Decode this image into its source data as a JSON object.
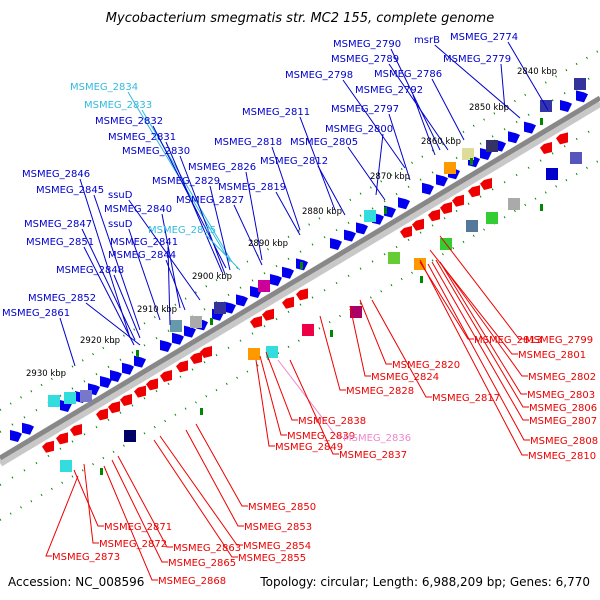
{
  "title": "Mycobacterium smegmatis str. MC2 155, complete genome",
  "accession": "Accession: NC_008596",
  "summary": "Topology: circular; Length: 6,988,209 bp; Genes: 6,770",
  "colors": {
    "forward": "#0000ee",
    "reverse": "#ee0000",
    "highlight_forward": "#33ccee",
    "highlight_reverse": "#ee88cc",
    "backbone": "#888888",
    "tick": "#008800"
  },
  "kbp_ticks": [
    "2840 kbp",
    "2850 kbp",
    "2860 kbp",
    "2870 kbp",
    "2880 kbp",
    "2890 kbp",
    "2900 kbp",
    "2910 kbp",
    "2920 kbp",
    "2930 kbp"
  ],
  "forward_labels": [
    {
      "text": "MSMEG_2774",
      "color": "#0000cc"
    },
    {
      "text": "msrB",
      "color": "#0000cc"
    },
    {
      "text": "MSMEG_2790",
      "color": "#0000cc"
    },
    {
      "text": "MSMEG_2789",
      "color": "#0000cc"
    },
    {
      "text": "MSMEG_2779",
      "color": "#0000cc"
    },
    {
      "text": "MSMEG_2798",
      "color": "#0000cc"
    },
    {
      "text": "MSMEG_2786",
      "color": "#0000cc"
    },
    {
      "text": "MSMEG_2792",
      "color": "#0000cc"
    },
    {
      "text": "MSMEG_2834",
      "color": "#33bbdd"
    },
    {
      "text": "MSMEG_2833",
      "color": "#33bbdd"
    },
    {
      "text": "MSMEG_2797",
      "color": "#0000cc"
    },
    {
      "text": "MSMEG_2811",
      "color": "#0000cc"
    },
    {
      "text": "MSMEG_2832",
      "color": "#0000cc"
    },
    {
      "text": "MSMEG_2800",
      "color": "#0000cc"
    },
    {
      "text": "MSMEG_2831",
      "color": "#0000cc"
    },
    {
      "text": "MSMEG_2818",
      "color": "#0000cc"
    },
    {
      "text": "MSMEG_2805",
      "color": "#0000cc"
    },
    {
      "text": "MSMEG_2830",
      "color": "#0000cc"
    },
    {
      "text": "MSMEG_2812",
      "color": "#0000cc"
    },
    {
      "text": "MSMEG_2826",
      "color": "#0000cc"
    },
    {
      "text": "MSMEG_2846",
      "color": "#0000cc"
    },
    {
      "text": "MSMEG_2829",
      "color": "#0000cc"
    },
    {
      "text": "MSMEG_2819",
      "color": "#0000cc"
    },
    {
      "text": "MSMEG_2845",
      "color": "#0000cc"
    },
    {
      "text": "ssuD",
      "color": "#0000cc"
    },
    {
      "text": "MSMEG_2827",
      "color": "#0000cc"
    },
    {
      "text": "MSMEG_2840",
      "color": "#0000cc"
    },
    {
      "text": "MSMEG_2847",
      "color": "#0000cc"
    },
    {
      "text": "ssuD",
      "color": "#0000cc"
    },
    {
      "text": "MSMEG_2835",
      "color": "#33bbdd"
    },
    {
      "text": "MSMEG_2851",
      "color": "#0000cc"
    },
    {
      "text": "MSMEG_2841",
      "color": "#0000cc"
    },
    {
      "text": "MSMEG_2844",
      "color": "#0000cc"
    },
    {
      "text": "MSMEG_2848",
      "color": "#0000cc"
    },
    {
      "text": "MSMEG_2852",
      "color": "#0000cc"
    },
    {
      "text": "MSMEG_2861",
      "color": "#0000cc"
    }
  ],
  "reverse_labels": [
    {
      "text": "MSMEG_2799",
      "color": "#ee0000"
    },
    {
      "text": "MSMEG_2813",
      "color": "#ee0000"
    },
    {
      "text": "MSMEG_2801",
      "color": "#ee0000"
    },
    {
      "text": "MSMEG_2820",
      "color": "#ee0000"
    },
    {
      "text": "MSMEG_2824",
      "color": "#ee0000"
    },
    {
      "text": "MSMEG_2802",
      "color": "#ee0000"
    },
    {
      "text": "MSMEG_2828",
      "color": "#ee0000"
    },
    {
      "text": "MSMEG_2803",
      "color": "#ee0000"
    },
    {
      "text": "MSMEG_2817",
      "color": "#ee0000"
    },
    {
      "text": "MSMEG_2806",
      "color": "#ee0000"
    },
    {
      "text": "MSMEG_2807",
      "color": "#ee0000"
    },
    {
      "text": "MSMEG_2838",
      "color": "#ee0000"
    },
    {
      "text": "MSMEG_2839",
      "color": "#ee0000"
    },
    {
      "text": "MSMEG_2836",
      "color": "#ee88cc"
    },
    {
      "text": "MSMEG_2808",
      "color": "#ee0000"
    },
    {
      "text": "MSMEG_2849",
      "color": "#ee0000"
    },
    {
      "text": "MSMEG_2837",
      "color": "#ee0000"
    },
    {
      "text": "MSMEG_2810",
      "color": "#ee0000"
    },
    {
      "text": "MSMEG_2850",
      "color": "#ee0000"
    },
    {
      "text": "MSMEG_2853",
      "color": "#ee0000"
    },
    {
      "text": "MSMEG_2871",
      "color": "#ee0000"
    },
    {
      "text": "MSMEG_2872",
      "color": "#ee0000"
    },
    {
      "text": "MSMEG_2854",
      "color": "#ee0000"
    },
    {
      "text": "MSMEG_2863",
      "color": "#ee0000"
    },
    {
      "text": "MSMEG_2855",
      "color": "#ee0000"
    },
    {
      "text": "MSMEG_2873",
      "color": "#ee0000"
    },
    {
      "text": "MSMEG_2865",
      "color": "#ee0000"
    },
    {
      "text": "MSMEG_2868",
      "color": "#ee0000"
    }
  ]
}
